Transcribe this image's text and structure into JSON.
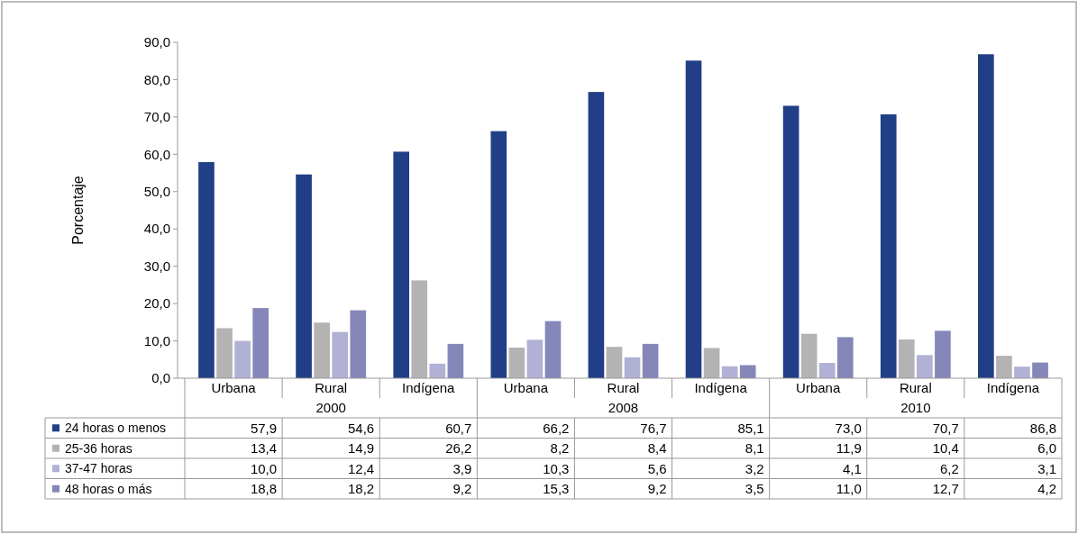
{
  "chart_data": {
    "type": "bar",
    "ylabel": "Porcentaje",
    "categories": [
      "Urbana",
      "Rural",
      "Indígena",
      "Urbana",
      "Rural",
      "Indígena",
      "Urbana",
      "Rural",
      "Indígena"
    ],
    "annotations": [
      "2000",
      "2008",
      "2010"
    ],
    "series": [
      {
        "name": "24 horas o menos",
        "color": "#213f87",
        "values": [
          57.9,
          54.6,
          60.7,
          66.2,
          76.7,
          85.1,
          73.0,
          70.7,
          86.8
        ],
        "value_labels": [
          "57,9",
          "54,6",
          "60,7",
          "66,2",
          "76,7",
          "85,1",
          "73,0",
          "70,7",
          "86,8"
        ]
      },
      {
        "name": "25-36 horas",
        "color": "#b3b3b3",
        "values": [
          13.4,
          14.9,
          26.2,
          8.2,
          8.4,
          8.1,
          11.9,
          10.4,
          6.0
        ],
        "value_labels": [
          "13,4",
          "14,9",
          "26,2",
          "8,2",
          "8,4",
          "8,1",
          "11,9",
          "10,4",
          "6,0"
        ]
      },
      {
        "name": "37-47 horas",
        "color": "#b1b1d6",
        "values": [
          10.0,
          12.4,
          3.9,
          10.3,
          5.6,
          3.2,
          4.1,
          6.2,
          3.1
        ],
        "value_labels": [
          "10,0",
          "12,4",
          "3,9",
          "10,3",
          "5,6",
          "3,2",
          "4,1",
          "6,2",
          "3,1"
        ]
      },
      {
        "name": "48 horas o más",
        "color": "#8587b9",
        "values": [
          18.8,
          18.2,
          9.2,
          15.3,
          9.2,
          3.5,
          11.0,
          12.7,
          4.2
        ],
        "value_labels": [
          "18,8",
          "18,2",
          "9,2",
          "15,3",
          "9,2",
          "3,5",
          "11,0",
          "12,7",
          "4,2"
        ]
      }
    ],
    "ylim": [
      0,
      90
    ],
    "yticks": [
      {
        "value": 0,
        "label": "0,0"
      },
      {
        "value": 10,
        "label": "10,0"
      },
      {
        "value": 20,
        "label": "20,0"
      },
      {
        "value": 30,
        "label": "30,0"
      },
      {
        "value": 40,
        "label": "40,0"
      },
      {
        "value": 50,
        "label": "50,0"
      },
      {
        "value": 60,
        "label": "60,0"
      },
      {
        "value": 70,
        "label": "70,0"
      },
      {
        "value": 80,
        "label": "80,0"
      },
      {
        "value": 90,
        "label": "90,0"
      }
    ],
    "legend": "bottom",
    "grid": false
  }
}
